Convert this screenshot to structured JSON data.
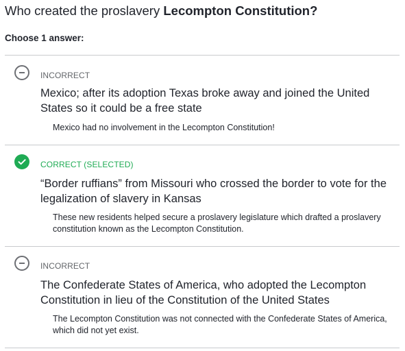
{
  "question": {
    "prefix": "Who created the proslavery ",
    "emphasis": "Lecompton Constitution?"
  },
  "instruction": "Choose 1 answer:",
  "choices": [
    {
      "status": "INCORRECT",
      "icon": "minus-circle-icon",
      "answer": "Mexico; after its adoption Texas broke away and joined the United States so it could be a free state",
      "feedback": "Mexico had no involvement in the Lecompton Constitution!"
    },
    {
      "status": "CORRECT (SELECTED)",
      "icon": "check-circle-icon",
      "answer": "“Border ruffians” from Missouri who crossed the border to vote for the legalization of slavery in Kansas",
      "feedback": "These new residents helped secure a proslavery legislature which drafted a proslavery constitution known as the Lecompton Constitution."
    },
    {
      "status": "INCORRECT",
      "icon": "minus-circle-icon",
      "answer": "The Confederate States of America, who adopted the Lecompton Constitution in lieu of the Constitution of the United States",
      "feedback": "The Lecompton Constitution was not connected with the Confederate States of America, which did not yet exist."
    }
  ],
  "colors": {
    "correct": "#1fab54",
    "incorrect": "#6d6f74",
    "text": "#21242c",
    "divider": "#c8cacd"
  }
}
